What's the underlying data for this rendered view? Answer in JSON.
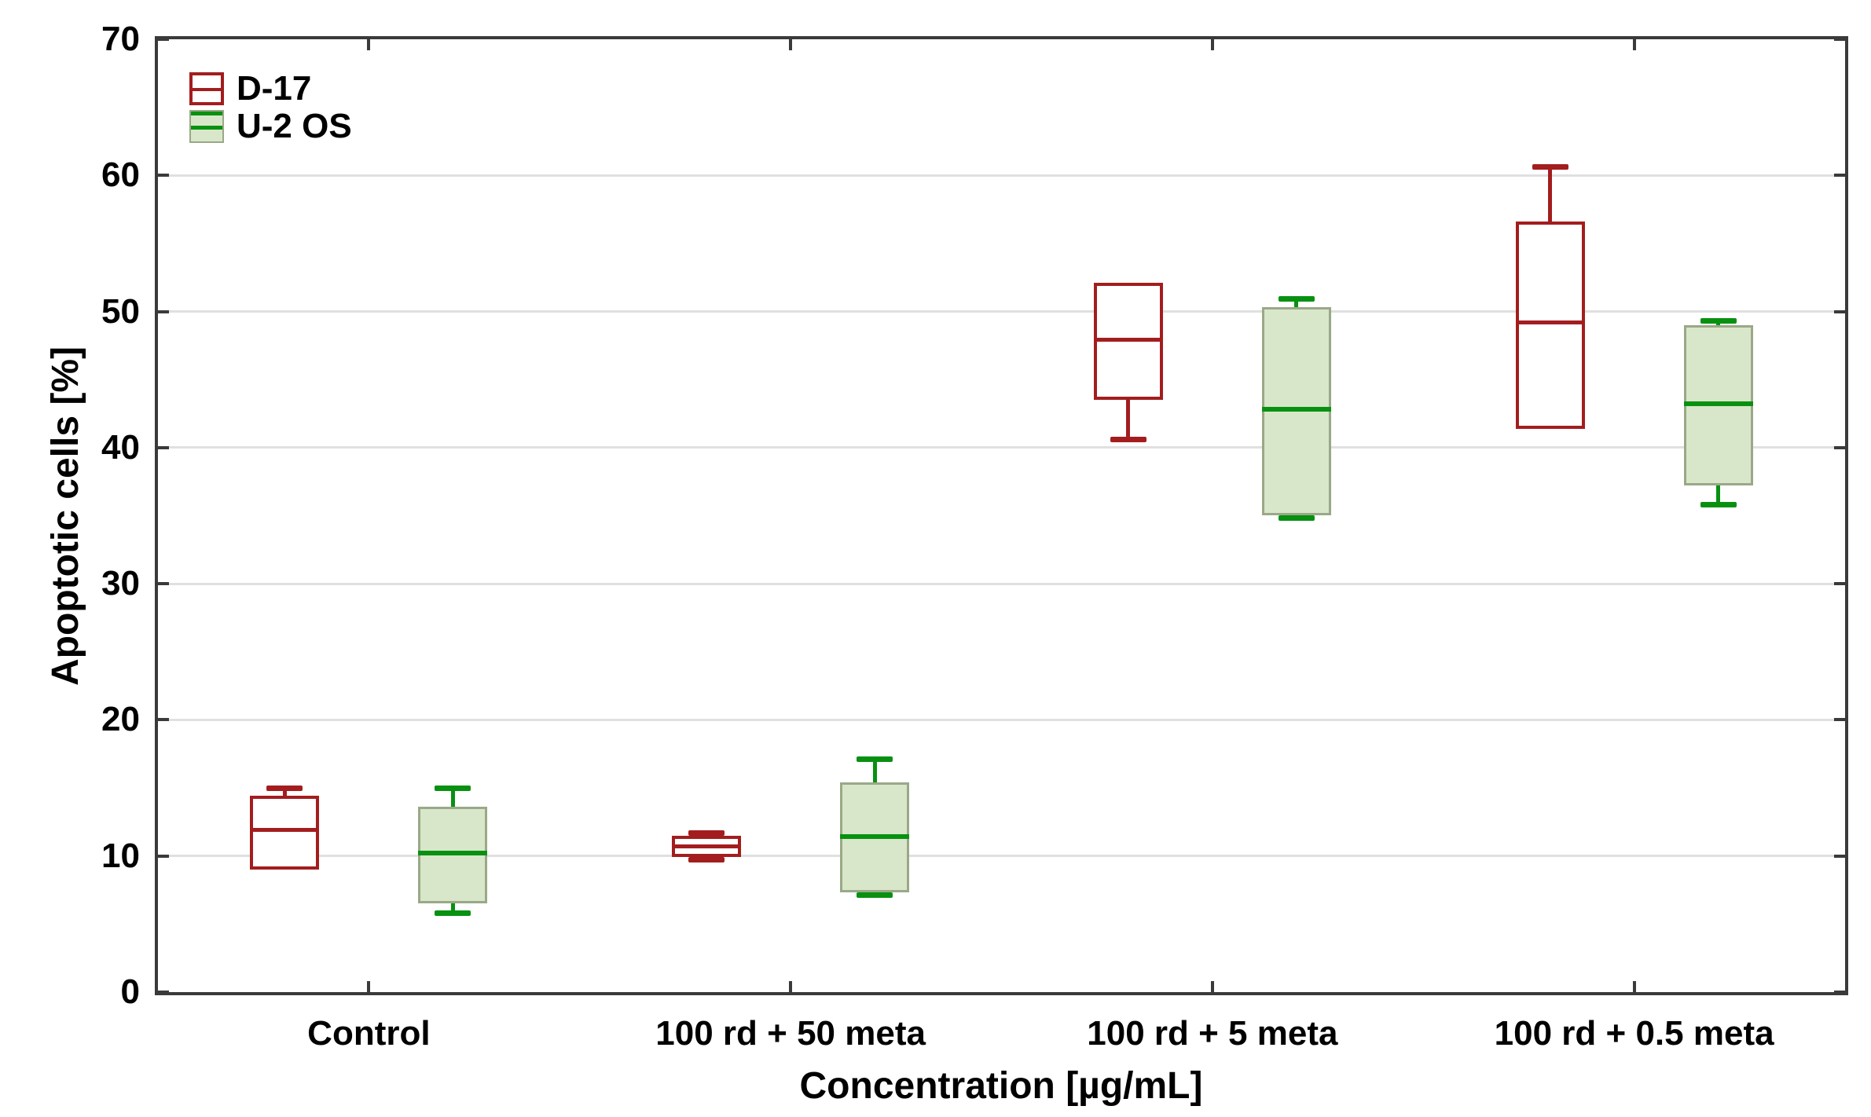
{
  "chart_data": {
    "type": "boxplot",
    "title": "",
    "xlabel": "Concentration [µg/mL]",
    "ylabel": "Apoptotic cells [%]",
    "ylim": [
      0,
      70
    ],
    "yticks": [
      0,
      10,
      20,
      30,
      40,
      50,
      60,
      70
    ],
    "grid": "horizontal-only",
    "legend_position": "top-left-inside",
    "categories": [
      "Control",
      "100 rd + 50 meta",
      "100 rd + 5 meta",
      "100 rd + 0.5 meta"
    ],
    "colors": {
      "d17_red": "#a31d1e",
      "u2os_green_line": "#089111",
      "u2os_fill": "#d8e7c9",
      "u2os_border": "#9aa888",
      "axis": "#3a3a3a",
      "gridline": "#e0e0e0",
      "background": "#ffffff",
      "text": "#000000"
    },
    "series": [
      {
        "name": "D-17",
        "box_fill": "#ffffff",
        "box_border": "#a31d1e",
        "line_color": "#a31d1e",
        "border_width": 4,
        "median_width": 5,
        "boxes": [
          {
            "category": "Control",
            "min": 9.0,
            "q1": 9.0,
            "median": 11.9,
            "q3": 14.4,
            "max": 15.0
          },
          {
            "category": "100 rd + 50 meta",
            "min": 9.7,
            "q1": 9.9,
            "median": 10.7,
            "q3": 11.5,
            "max": 11.7
          },
          {
            "category": "100 rd + 5 meta",
            "min": 40.6,
            "q1": 43.5,
            "median": 47.9,
            "q3": 52.1,
            "max": 52.1
          },
          {
            "category": "100 rd + 0.5 meta",
            "min": 41.4,
            "q1": 41.4,
            "median": 49.2,
            "q3": 56.6,
            "max": 60.6
          }
        ]
      },
      {
        "name": "U-2 OS",
        "box_fill": "#d8e7c9",
        "box_border": "#9aa888",
        "line_color": "#089111",
        "border_width": 3,
        "median_width": 6,
        "boxes": [
          {
            "category": "Control",
            "min": 5.8,
            "q1": 6.5,
            "median": 10.2,
            "q3": 13.6,
            "max": 15.0
          },
          {
            "category": "100 rd + 50 meta",
            "min": 7.1,
            "q1": 7.3,
            "median": 11.4,
            "q3": 15.4,
            "max": 17.1
          },
          {
            "category": "100 rd + 5 meta",
            "min": 34.8,
            "q1": 35.0,
            "median": 42.8,
            "q3": 50.3,
            "max": 50.9
          },
          {
            "category": "100 rd + 0.5 meta",
            "min": 35.8,
            "q1": 37.2,
            "median": 43.2,
            "q3": 49.0,
            "max": 49.3
          }
        ]
      }
    ]
  }
}
